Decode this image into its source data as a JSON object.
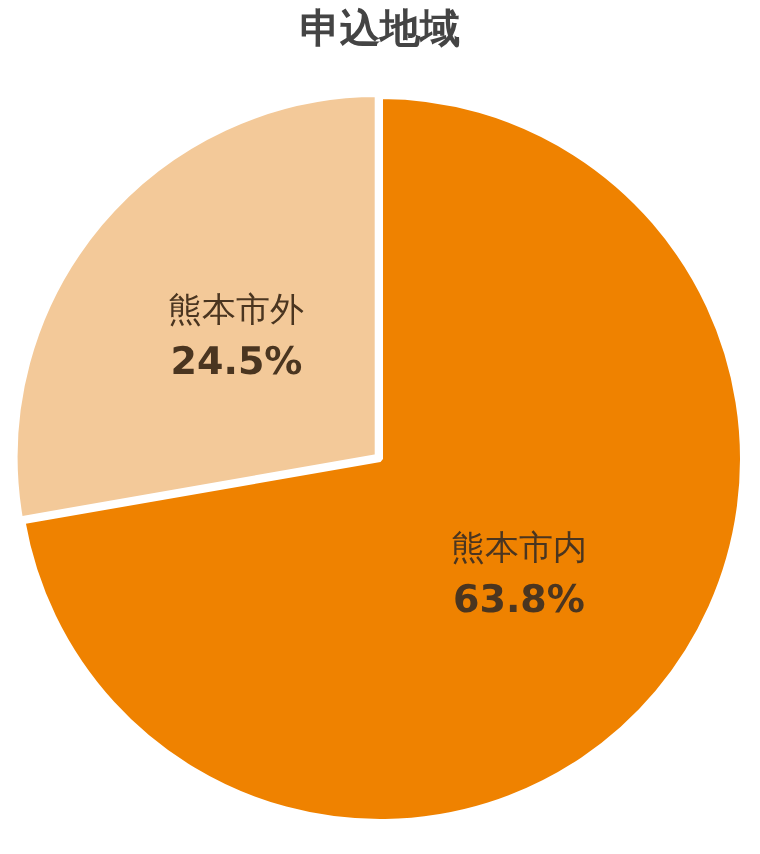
{
  "chart_data": {
    "type": "pie",
    "title": "申込地域",
    "categories": [
      "熊本市内",
      "熊本市外"
    ],
    "values": [
      63.8,
      24.5
    ],
    "value_labels": [
      "63.8%",
      "24.5%"
    ],
    "colors": [
      "#ef8200",
      "#f3c999"
    ],
    "legend": false
  }
}
